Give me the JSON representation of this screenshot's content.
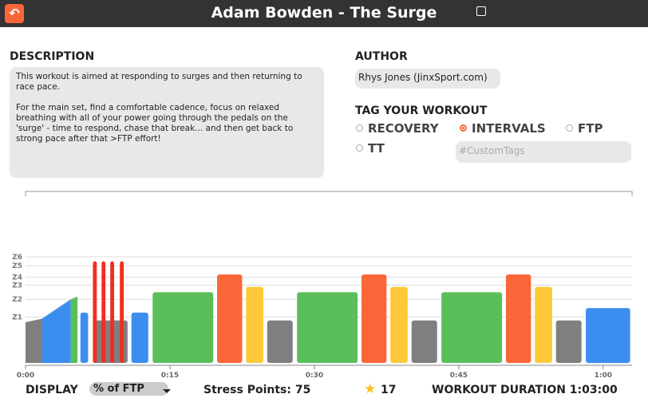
{
  "header": {
    "title": "Adam Bowden - The Surge"
  },
  "description": {
    "heading": "DESCRIPTION",
    "paragraphs": [
      "This workout is aimed at responding to surges and then returning to race pace.",
      "For the main set, find a comfortable cadence, focus on relaxed breathing with all of your power going through the pedals on the 'surge' - time to respond, chase that break... and then get back to strong pace after that >FTP effort!"
    ]
  },
  "author": {
    "heading": "AUTHOR",
    "name": "Rhys Jones (JinxSport.com)"
  },
  "tags": {
    "heading": "TAG YOUR WORKOUT",
    "options": [
      "RECOVERY",
      "INTERVALS",
      "FTP",
      "TT"
    ],
    "selected": "INTERVALS",
    "custom_placeholder": "#CustomTags"
  },
  "workout_chart": {
    "xlim": [
      0,
      63
    ],
    "xticks": [
      {
        "value": 0,
        "label": "0:00"
      },
      {
        "value": 15,
        "label": "0:15"
      },
      {
        "value": 30,
        "label": "0:30"
      },
      {
        "value": 45,
        "label": "0:45"
      },
      {
        "value": 60,
        "label": "1:00"
      }
    ],
    "ylim": [
      0,
      120
    ],
    "yticks": [
      {
        "value": 52,
        "label": "Z1"
      },
      {
        "value": 72,
        "label": "Z2"
      },
      {
        "value": 88,
        "label": "Z3"
      },
      {
        "value": 97,
        "label": "Z4"
      },
      {
        "value": 110,
        "label": "Z5"
      },
      {
        "value": 120,
        "label": "Z6"
      }
    ],
    "blocks": [
      {
        "start": 0,
        "duration": 1.7,
        "from": 46,
        "to": 50,
        "color": "#7f7f7f"
      },
      {
        "start": 1.7,
        "duration": 3,
        "from": 50,
        "to": 72,
        "color": "#3b8ef0"
      },
      {
        "start": 4.7,
        "duration": 0.7,
        "from": 72,
        "to": 75,
        "color": "#5abf5a"
      },
      {
        "start": 5.7,
        "duration": 0.8,
        "power": 57,
        "color": "#3b8ef0"
      },
      {
        "start": 7.0,
        "duration": 3.6,
        "power": 48,
        "color": "#7f7f7f"
      },
      {
        "start": 7.0,
        "duration": 0.4,
        "power": 115,
        "color": "#f42c1f"
      },
      {
        "start": 7.9,
        "duration": 0.4,
        "power": 115,
        "color": "#f42c1f"
      },
      {
        "start": 8.8,
        "duration": 0.4,
        "power": 115,
        "color": "#f42c1f"
      },
      {
        "start": 9.8,
        "duration": 0.4,
        "power": 115,
        "color": "#f42c1f"
      },
      {
        "start": 11.0,
        "duration": 1.75,
        "power": 57,
        "color": "#3b8ef0"
      },
      {
        "start": 13.2,
        "duration": 6.3,
        "power": 80,
        "color": "#5abf5a"
      },
      {
        "start": 19.9,
        "duration": 2.6,
        "power": 100,
        "color": "#fb6638"
      },
      {
        "start": 22.9,
        "duration": 1.8,
        "power": 86,
        "color": "#fdc93a"
      },
      {
        "start": 25.1,
        "duration": 2.65,
        "power": 48,
        "color": "#7f7f7f"
      },
      {
        "start": 28.2,
        "duration": 6.3,
        "power": 80,
        "color": "#5abf5a"
      },
      {
        "start": 34.9,
        "duration": 2.6,
        "power": 100,
        "color": "#fb6638"
      },
      {
        "start": 37.9,
        "duration": 1.8,
        "power": 86,
        "color": "#fdc93a"
      },
      {
        "start": 40.1,
        "duration": 2.65,
        "power": 48,
        "color": "#7f7f7f"
      },
      {
        "start": 43.2,
        "duration": 6.3,
        "power": 80,
        "color": "#5abf5a"
      },
      {
        "start": 49.9,
        "duration": 2.6,
        "power": 100,
        "color": "#fb6638"
      },
      {
        "start": 52.9,
        "duration": 1.8,
        "power": 86,
        "color": "#fdc93a"
      },
      {
        "start": 55.1,
        "duration": 2.65,
        "power": 48,
        "color": "#7f7f7f"
      },
      {
        "start": 58.2,
        "duration": 4.6,
        "power": 62,
        "color": "#3b8ef0"
      }
    ]
  },
  "footer": {
    "display_label": "DISPLAY",
    "display_value": "% of FTP",
    "stress_points": "Stress Points: 75",
    "stars": "17",
    "duration": "WORKOUT DURATION 1:03:00"
  }
}
